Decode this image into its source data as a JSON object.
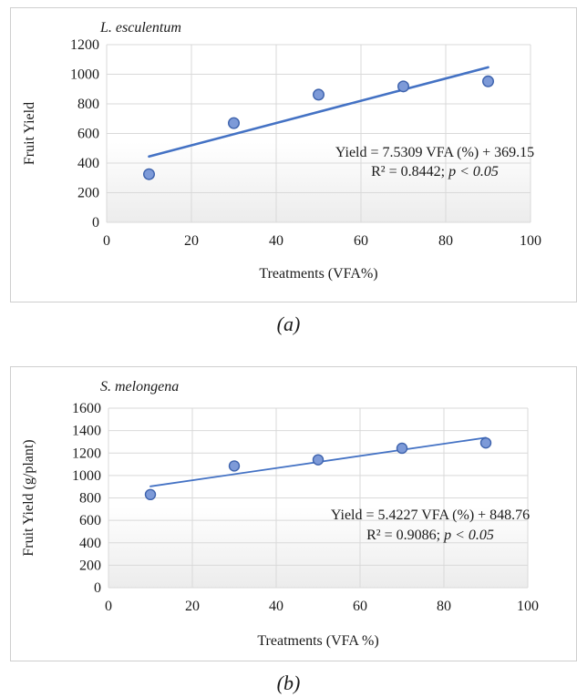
{
  "chart_data": [
    {
      "type": "scatter",
      "title": "L. esculentum",
      "xlabel": "Treatments (VFA%)",
      "ylabel": "Fruit Yield",
      "xlim": [
        0,
        100
      ],
      "ylim": [
        0,
        1200
      ],
      "xticks": [
        0,
        20,
        40,
        60,
        80,
        100
      ],
      "yticks": [
        0,
        200,
        400,
        600,
        800,
        1000,
        1200
      ],
      "grid": true,
      "series": [
        {
          "x": [
            10,
            30,
            50,
            70,
            90
          ],
          "y": [
            325,
            670,
            862,
            918,
            952
          ]
        }
      ],
      "trendline": {
        "slope": 7.5309,
        "intercept": 369.15,
        "x_range": [
          10,
          90
        ]
      },
      "annotation": {
        "equation": "Yield = 7.5309 VFA (%) + 369.15",
        "r2_text": "R² = 0.8442; ",
        "p_text": "p < 0.05"
      },
      "caption": "(a)",
      "colors": {
        "marker_fill": "#7d9ad8",
        "marker_stroke": "#3e63ad",
        "trendline": "#4472c4"
      }
    },
    {
      "type": "scatter",
      "title": "S. melongena",
      "xlabel": "Treatments (VFA %)",
      "ylabel": "Fruit  Yield (g/plant)",
      "xlim": [
        0,
        100
      ],
      "ylim": [
        0,
        1600
      ],
      "xticks": [
        0,
        20,
        40,
        60,
        80,
        100
      ],
      "yticks": [
        0,
        200,
        400,
        600,
        800,
        1000,
        1200,
        1400,
        1600
      ],
      "grid": true,
      "series": [
        {
          "x": [
            10,
            30,
            50,
            70,
            90
          ],
          "y": [
            830,
            1085,
            1140,
            1243,
            1290
          ]
        }
      ],
      "trendline": {
        "slope": 5.4227,
        "intercept": 848.76,
        "x_range": [
          10,
          90
        ]
      },
      "annotation": {
        "equation": "Yield = 5.4227 VFA (%) + 848.76",
        "r2_text": "R² = 0.9086; ",
        "p_text": "p < 0.05"
      },
      "caption": "(b)",
      "colors": {
        "marker_fill": "#7d9ad8",
        "marker_stroke": "#3e63ad",
        "trendline": "#4472c4"
      }
    }
  ]
}
